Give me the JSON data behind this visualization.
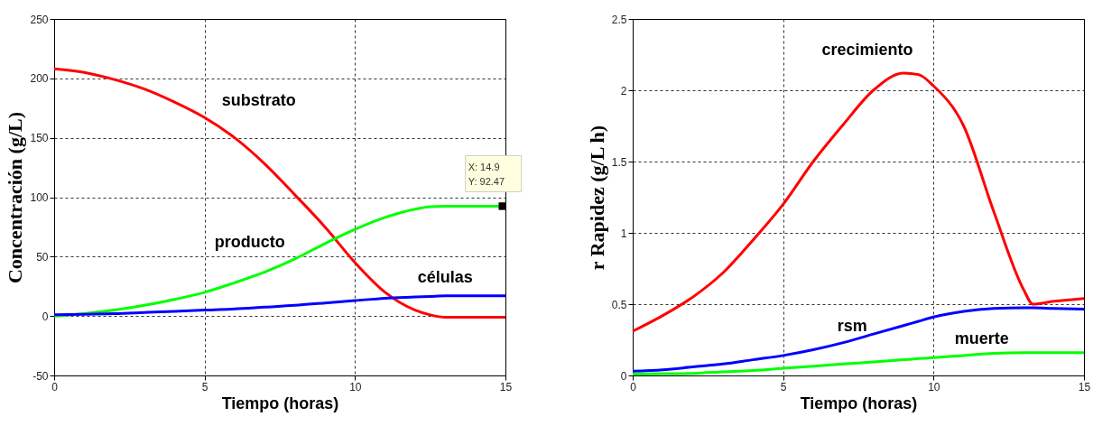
{
  "chart_data": [
    {
      "type": "line",
      "xlabel": "Tiempo (horas)",
      "ylabel": "Concentración (g/L)",
      "xlim": [
        0,
        15
      ],
      "xticks": [
        0,
        5,
        10,
        15
      ],
      "ylim": [
        -50,
        250
      ],
      "yticks": [
        -50,
        0,
        50,
        100,
        150,
        200,
        250
      ],
      "grid": true,
      "x": [
        0,
        1,
        2,
        3,
        4,
        5,
        6,
        7,
        8,
        9,
        10,
        11,
        12,
        12.5,
        13,
        14,
        14.9,
        15
      ],
      "series": [
        {
          "name": "substrato",
          "color": "#ff0000",
          "values": [
            208,
            205,
            199,
            191,
            180,
            167,
            150,
            128,
            102,
            75,
            45,
            20,
            5,
            1,
            -1,
            -1,
            -1,
            -1
          ]
        },
        {
          "name": "producto",
          "color": "#00ff00",
          "values": [
            0,
            2,
            5,
            9,
            14,
            20,
            28,
            37,
            48,
            61,
            73,
            83,
            90,
            92,
            92.5,
            92.5,
            92.47,
            92.5
          ]
        },
        {
          "name": "células",
          "color": "#0000ff",
          "values": [
            1,
            1.5,
            2,
            3,
            4,
            5,
            6,
            7.5,
            9,
            11,
            13,
            15,
            16,
            16.5,
            17,
            17,
            17,
            17
          ]
        }
      ],
      "annotations": [
        {
          "text": "X: 14.9\nY: 92.47",
          "x": 14.9,
          "y": 92.47
        }
      ]
    },
    {
      "type": "line",
      "xlabel": "Tiempo (horas)",
      "ylabel": "r Rapidez (g/L h)",
      "xlim": [
        0,
        15
      ],
      "xticks": [
        0,
        5,
        10,
        15
      ],
      "ylim": [
        0,
        2.5
      ],
      "yticks": [
        0,
        0.5,
        1,
        1.5,
        2,
        2.5
      ],
      "grid": true,
      "x": [
        0,
        1,
        2,
        3,
        4,
        5,
        6,
        7,
        8,
        9,
        9.5,
        10,
        11,
        12,
        13,
        13.3,
        14,
        15
      ],
      "series": [
        {
          "name": "crecimiento",
          "color": "#ff0000",
          "values": [
            0.31,
            0.42,
            0.55,
            0.72,
            0.95,
            1.2,
            1.5,
            1.76,
            2.0,
            2.12,
            2.11,
            2.03,
            1.75,
            1.15,
            0.6,
            0.5,
            0.52,
            0.54
          ]
        },
        {
          "name": "rsm",
          "color": "#0000ff",
          "values": [
            0.03,
            0.04,
            0.06,
            0.08,
            0.11,
            0.14,
            0.18,
            0.23,
            0.29,
            0.35,
            0.38,
            0.41,
            0.45,
            0.47,
            0.475,
            0.475,
            0.47,
            0.465
          ]
        },
        {
          "name": "muerte",
          "color": "#00ff00",
          "values": [
            0.01,
            0.012,
            0.015,
            0.025,
            0.035,
            0.05,
            0.065,
            0.08,
            0.095,
            0.11,
            0.118,
            0.125,
            0.14,
            0.155,
            0.16,
            0.16,
            0.16,
            0.16
          ]
        }
      ]
    }
  ]
}
